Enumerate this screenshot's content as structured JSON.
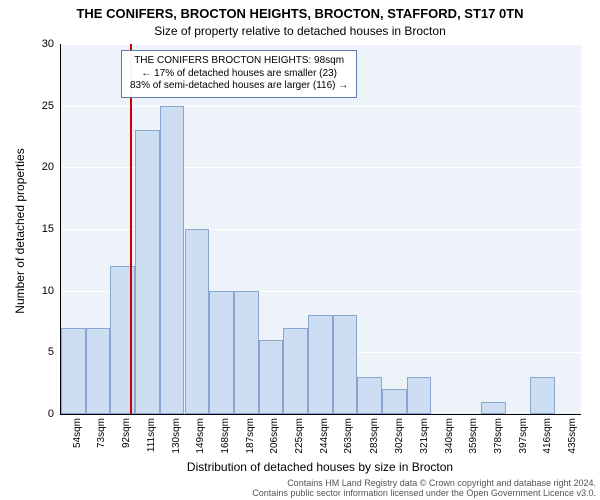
{
  "title_main": "THE CONIFERS, BROCTON HEIGHTS, BROCTON, STAFFORD, ST17 0TN",
  "title_sub": "Size of property relative to detached houses in Brocton",
  "y_label": "Number of detached properties",
  "x_label": "Distribution of detached houses by size in Brocton",
  "footer_line1": "Contains HM Land Registry data © Crown copyright and database right 2024.",
  "footer_line2": "Contains public sector information licensed under the Open Government Licence v3.0.",
  "info_box": {
    "line1": "THE CONIFERS BROCTON HEIGHTS: 98sqm",
    "line2": "← 17% of detached houses are smaller (23)",
    "line3": "83% of semi-detached houses are larger (116) →"
  },
  "chart": {
    "type": "histogram",
    "background_color": "#eef2f9",
    "grid_color": "#ffffff",
    "bar_fill": "#cdddf2",
    "bar_border": "#88a6cf",
    "marker_color": "#cc0000",
    "marker_x_value": 98,
    "ylim": [
      0,
      30
    ],
    "ytick_step": 5,
    "y_ticks": [
      0,
      5,
      10,
      15,
      20,
      25,
      30
    ],
    "x_min": 45,
    "x_max": 445,
    "x_ticks": [
      54,
      73,
      92,
      111,
      130,
      149,
      168,
      187,
      206,
      225,
      244,
      263,
      283,
      302,
      321,
      340,
      359,
      378,
      397,
      416,
      435
    ],
    "x_tick_suffix": "sqm",
    "bin_width": 19,
    "bins": [
      {
        "start": 45,
        "count": 7
      },
      {
        "start": 64,
        "count": 7
      },
      {
        "start": 83,
        "count": 12
      },
      {
        "start": 102,
        "count": 23
      },
      {
        "start": 121,
        "count": 25
      },
      {
        "start": 140,
        "count": 15
      },
      {
        "start": 159,
        "count": 10
      },
      {
        "start": 178,
        "count": 10
      },
      {
        "start": 197,
        "count": 6
      },
      {
        "start": 216,
        "count": 7
      },
      {
        "start": 235,
        "count": 8
      },
      {
        "start": 254,
        "count": 8
      },
      {
        "start": 273,
        "count": 3
      },
      {
        "start": 292,
        "count": 2
      },
      {
        "start": 311,
        "count": 3
      },
      {
        "start": 330,
        "count": 0
      },
      {
        "start": 349,
        "count": 0
      },
      {
        "start": 368,
        "count": 1
      },
      {
        "start": 387,
        "count": 0
      },
      {
        "start": 406,
        "count": 3
      },
      {
        "start": 425,
        "count": 0
      }
    ],
    "title_fontsize": 13,
    "subtitle_fontsize": 12,
    "label_fontsize": 12,
    "tick_fontsize": 10
  }
}
